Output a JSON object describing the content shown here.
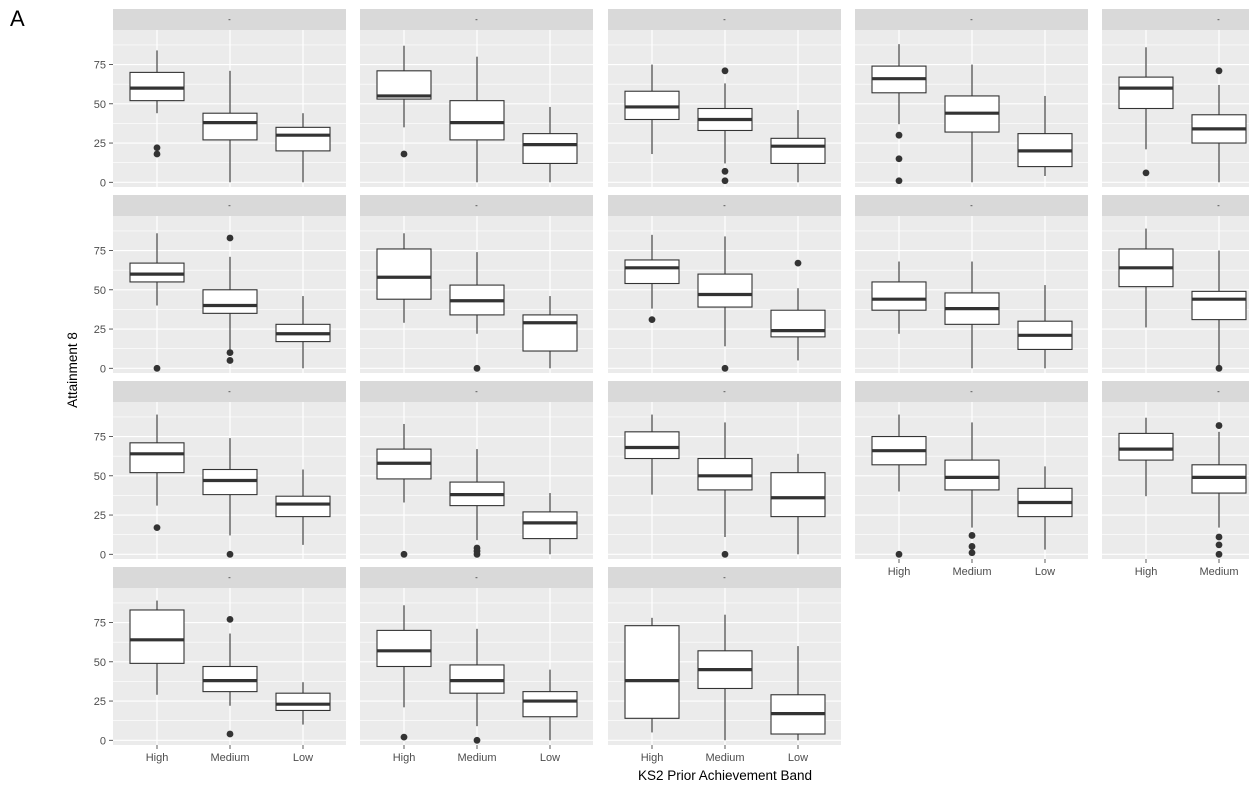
{
  "panel_label": "A",
  "chart_data": {
    "type": "boxplot",
    "facet_grid": "faceted boxplots, 5 columns (rightmost column cut off at the image edge)",
    "xlabel": "KS2 Prior Achievement Band",
    "ylabel": "Attainment 8",
    "categories": [
      "High",
      "Medium",
      "Low"
    ],
    "yticks": [
      0,
      25,
      50,
      75
    ],
    "ylim": [
      -3,
      97
    ],
    "grid": true,
    "colors": {
      "panel_bg": "#EBEBEB",
      "strip_bg": "#D9D9D9",
      "grid_major": "#FFFFFF",
      "box_fill": "#FFFFFF",
      "box_line": "#333333"
    },
    "panels": [
      {
        "strip": "-",
        "boxes": [
          {
            "category": "High",
            "whisker_low": 44,
            "q1": 52,
            "median": 60,
            "q3": 70,
            "whisker_high": 84,
            "outliers": [
              22,
              18
            ]
          },
          {
            "category": "Medium",
            "whisker_low": 0,
            "q1": 27,
            "median": 38,
            "q3": 44,
            "whisker_high": 71,
            "outliers": []
          },
          {
            "category": "Low",
            "whisker_low": 0,
            "q1": 20,
            "median": 30,
            "q3": 35,
            "whisker_high": 44,
            "outliers": []
          }
        ]
      },
      {
        "strip": "-",
        "boxes": [
          {
            "category": "High",
            "whisker_low": 35,
            "q1": 53,
            "median": 55,
            "q3": 71,
            "whisker_high": 87,
            "outliers": [
              18
            ]
          },
          {
            "category": "Medium",
            "whisker_low": 0,
            "q1": 27,
            "median": 38,
            "q3": 52,
            "whisker_high": 80,
            "outliers": []
          },
          {
            "category": "Low",
            "whisker_low": 0,
            "q1": 12,
            "median": 24,
            "q3": 31,
            "whisker_high": 48,
            "outliers": []
          }
        ]
      },
      {
        "strip": "-",
        "boxes": [
          {
            "category": "High",
            "whisker_low": 18,
            "q1": 40,
            "median": 48,
            "q3": 58,
            "whisker_high": 75,
            "outliers": []
          },
          {
            "category": "Medium",
            "whisker_low": 12,
            "q1": 33,
            "median": 40,
            "q3": 47,
            "whisker_high": 63,
            "outliers": [
              71,
              7,
              1
            ]
          },
          {
            "category": "Low",
            "whisker_low": 0,
            "q1": 12,
            "median": 23,
            "q3": 28,
            "whisker_high": 46,
            "outliers": []
          }
        ]
      },
      {
        "strip": "-",
        "boxes": [
          {
            "category": "High",
            "whisker_low": 37,
            "q1": 57,
            "median": 66,
            "q3": 74,
            "whisker_high": 88,
            "outliers": [
              30,
              15,
              1
            ]
          },
          {
            "category": "Medium",
            "whisker_low": 0,
            "q1": 32,
            "median": 44,
            "q3": 55,
            "whisker_high": 75,
            "outliers": []
          },
          {
            "category": "Low",
            "whisker_low": 4,
            "q1": 10,
            "median": 20,
            "q3": 31,
            "whisker_high": 55,
            "outliers": []
          }
        ]
      },
      {
        "strip": "-",
        "boxes": [
          {
            "category": "High",
            "whisker_low": 21,
            "q1": 47,
            "median": 60,
            "q3": 67,
            "whisker_high": 86,
            "outliers": [
              6
            ]
          },
          {
            "category": "Medium",
            "whisker_low": 0,
            "q1": 25,
            "median": 34,
            "q3": 43,
            "whisker_high": 62,
            "outliers": [
              71
            ]
          }
        ]
      },
      {
        "strip": "-",
        "boxes": [
          {
            "category": "High",
            "whisker_low": 40,
            "q1": 55,
            "median": 60,
            "q3": 67,
            "whisker_high": 86,
            "outliers": [
              0
            ]
          },
          {
            "category": "Medium",
            "whisker_low": 12,
            "q1": 35,
            "median": 40,
            "q3": 50,
            "whisker_high": 71,
            "outliers": [
              83,
              10,
              5
            ]
          },
          {
            "category": "Low",
            "whisker_low": 0,
            "q1": 17,
            "median": 22,
            "q3": 28,
            "whisker_high": 46,
            "outliers": []
          }
        ]
      },
      {
        "strip": "-",
        "boxes": [
          {
            "category": "High",
            "whisker_low": 29,
            "q1": 44,
            "median": 58,
            "q3": 76,
            "whisker_high": 86,
            "outliers": []
          },
          {
            "category": "Medium",
            "whisker_low": 22,
            "q1": 34,
            "median": 43,
            "q3": 53,
            "whisker_high": 74,
            "outliers": [
              0
            ]
          },
          {
            "category": "Low",
            "whisker_low": 0,
            "q1": 11,
            "median": 29,
            "q3": 34,
            "whisker_high": 46,
            "outliers": []
          }
        ]
      },
      {
        "strip": "-",
        "boxes": [
          {
            "category": "High",
            "whisker_low": 38,
            "q1": 54,
            "median": 64,
            "q3": 69,
            "whisker_high": 85,
            "outliers": [
              31
            ]
          },
          {
            "category": "Medium",
            "whisker_low": 14,
            "q1": 39,
            "median": 47,
            "q3": 60,
            "whisker_high": 84,
            "outliers": [
              0
            ]
          },
          {
            "category": "Low",
            "whisker_low": 5,
            "q1": 20,
            "median": 24,
            "q3": 37,
            "whisker_high": 51,
            "outliers": [
              67
            ]
          }
        ]
      },
      {
        "strip": "-",
        "boxes": [
          {
            "category": "High",
            "whisker_low": 22,
            "q1": 37,
            "median": 44,
            "q3": 55,
            "whisker_high": 68,
            "outliers": []
          },
          {
            "category": "Medium",
            "whisker_low": 0,
            "q1": 28,
            "median": 38,
            "q3": 48,
            "whisker_high": 68,
            "outliers": []
          },
          {
            "category": "Low",
            "whisker_low": 0,
            "q1": 12,
            "median": 21,
            "q3": 30,
            "whisker_high": 53,
            "outliers": []
          }
        ]
      },
      {
        "strip": "-",
        "boxes": [
          {
            "category": "High",
            "whisker_low": 26,
            "q1": 52,
            "median": 64,
            "q3": 76,
            "whisker_high": 89,
            "outliers": []
          },
          {
            "category": "Medium",
            "whisker_low": 0,
            "q1": 31,
            "median": 44,
            "q3": 49,
            "whisker_high": 75,
            "outliers": [
              0
            ]
          }
        ]
      },
      {
        "strip": "-",
        "boxes": [
          {
            "category": "High",
            "whisker_low": 31,
            "q1": 52,
            "median": 64,
            "q3": 71,
            "whisker_high": 89,
            "outliers": [
              17
            ]
          },
          {
            "category": "Medium",
            "whisker_low": 12,
            "q1": 38,
            "median": 47,
            "q3": 54,
            "whisker_high": 74,
            "outliers": [
              0
            ]
          },
          {
            "category": "Low",
            "whisker_low": 6,
            "q1": 24,
            "median": 32,
            "q3": 37,
            "whisker_high": 54,
            "outliers": []
          }
        ]
      },
      {
        "strip": "-",
        "boxes": [
          {
            "category": "High",
            "whisker_low": 33,
            "q1": 48,
            "median": 58,
            "q3": 67,
            "whisker_high": 83,
            "outliers": [
              0
            ]
          },
          {
            "category": "Medium",
            "whisker_low": 9,
            "q1": 31,
            "median": 38,
            "q3": 46,
            "whisker_high": 67,
            "outliers": [
              4,
              2,
              0
            ]
          },
          {
            "category": "Low",
            "whisker_low": 0,
            "q1": 10,
            "median": 20,
            "q3": 27,
            "whisker_high": 39,
            "outliers": []
          }
        ]
      },
      {
        "strip": "-",
        "boxes": [
          {
            "category": "High",
            "whisker_low": 38,
            "q1": 61,
            "median": 68,
            "q3": 78,
            "whisker_high": 89,
            "outliers": []
          },
          {
            "category": "Medium",
            "whisker_low": 11,
            "q1": 41,
            "median": 50,
            "q3": 61,
            "whisker_high": 84,
            "outliers": [
              0
            ]
          },
          {
            "category": "Low",
            "whisker_low": 0,
            "q1": 24,
            "median": 36,
            "q3": 52,
            "whisker_high": 64,
            "outliers": []
          }
        ]
      },
      {
        "strip": "-",
        "boxes": [
          {
            "category": "High",
            "whisker_low": 40,
            "q1": 57,
            "median": 66,
            "q3": 75,
            "whisker_high": 89,
            "outliers": [
              0
            ]
          },
          {
            "category": "Medium",
            "whisker_low": 17,
            "q1": 41,
            "median": 49,
            "q3": 60,
            "whisker_high": 84,
            "outliers": [
              12,
              5,
              1
            ]
          },
          {
            "category": "Low",
            "whisker_low": 3,
            "q1": 24,
            "median": 33,
            "q3": 42,
            "whisker_high": 56,
            "outliers": []
          }
        ]
      },
      {
        "strip": "-",
        "boxes": [
          {
            "category": "High",
            "whisker_low": 37,
            "q1": 60,
            "median": 67,
            "q3": 77,
            "whisker_high": 87,
            "outliers": []
          },
          {
            "category": "Medium",
            "whisker_low": 17,
            "q1": 39,
            "median": 49,
            "q3": 57,
            "whisker_high": 78,
            "outliers": [
              82,
              11,
              6,
              0
            ]
          }
        ]
      },
      {
        "strip": "-",
        "boxes": [
          {
            "category": "High",
            "whisker_low": 29,
            "q1": 49,
            "median": 64,
            "q3": 83,
            "whisker_high": 89,
            "outliers": []
          },
          {
            "category": "Medium",
            "whisker_low": 22,
            "q1": 31,
            "median": 38,
            "q3": 47,
            "whisker_high": 68,
            "outliers": [
              77,
              4
            ]
          },
          {
            "category": "Low",
            "whisker_low": 10,
            "q1": 19,
            "median": 23,
            "q3": 30,
            "whisker_high": 37,
            "outliers": []
          }
        ]
      },
      {
        "strip": "-",
        "boxes": [
          {
            "category": "High",
            "whisker_low": 21,
            "q1": 47,
            "median": 57,
            "q3": 70,
            "whisker_high": 86,
            "outliers": [
              2
            ]
          },
          {
            "category": "Medium",
            "whisker_low": 9,
            "q1": 30,
            "median": 38,
            "q3": 48,
            "whisker_high": 71,
            "outliers": [
              0
            ]
          },
          {
            "category": "Low",
            "whisker_low": 0,
            "q1": 15,
            "median": 25,
            "q3": 31,
            "whisker_high": 45,
            "outliers": []
          }
        ]
      },
      {
        "strip": "-",
        "boxes": [
          {
            "category": "High",
            "whisker_low": 5,
            "q1": 14,
            "median": 38,
            "q3": 73,
            "whisker_high": 78,
            "outliers": []
          },
          {
            "category": "Medium",
            "whisker_low": 0,
            "q1": 33,
            "median": 45,
            "q3": 57,
            "whisker_high": 80,
            "outliers": []
          },
          {
            "category": "Low",
            "whisker_low": 0,
            "q1": 4,
            "median": 17,
            "q3": 29,
            "whisker_high": 60,
            "outliers": []
          }
        ]
      }
    ]
  }
}
